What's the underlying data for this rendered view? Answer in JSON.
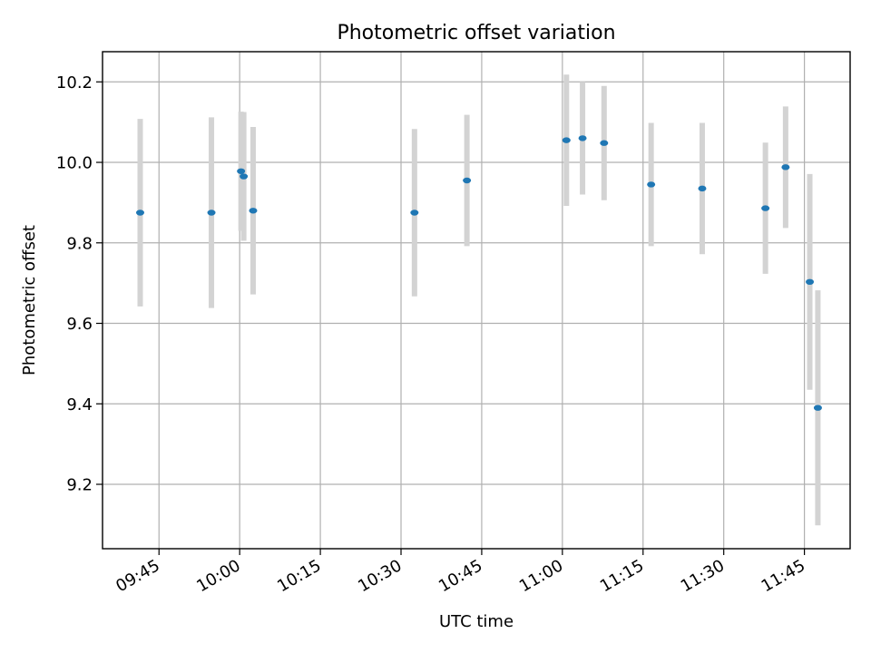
{
  "chart_data": {
    "type": "scatter",
    "title": "Photometric offset variation",
    "xlabel": "UTC time",
    "ylabel": "Photometric offset",
    "x_ticks": [
      "09:45",
      "10:00",
      "10:15",
      "10:30",
      "10:45",
      "11:00",
      "11:15",
      "11:30",
      "11:45"
    ],
    "y_ticks": [
      "9.2",
      "9.4",
      "9.6",
      "9.8",
      "10.0",
      "10.2"
    ],
    "xlim": [
      "09:34:30",
      "11:53:30"
    ],
    "ylim": [
      9.04,
      10.275
    ],
    "grid": true,
    "colors": {
      "point": "#1f77b4",
      "errorbar": "#d3d3d3"
    },
    "points": [
      {
        "x": "09:41:30",
        "y": 9.875,
        "err": 0.233
      },
      {
        "x": "09:54:45",
        "y": 9.875,
        "err": 0.237
      },
      {
        "x": "10:00:15",
        "y": 9.978,
        "err": 0.148
      },
      {
        "x": "10:00:45",
        "y": 9.965,
        "err": 0.16
      },
      {
        "x": "10:02:30",
        "y": 9.88,
        "err": 0.208
      },
      {
        "x": "10:32:30",
        "y": 9.875,
        "err": 0.208
      },
      {
        "x": "10:42:15",
        "y": 9.955,
        "err": 0.163
      },
      {
        "x": "11:00:45",
        "y": 10.055,
        "err": 0.163
      },
      {
        "x": "11:03:45",
        "y": 10.06,
        "err": 0.14
      },
      {
        "x": "11:07:45",
        "y": 10.048,
        "err": 0.142
      },
      {
        "x": "11:16:30",
        "y": 9.945,
        "err": 0.153
      },
      {
        "x": "11:26:00",
        "y": 9.935,
        "err": 0.163
      },
      {
        "x": "11:37:45",
        "y": 9.886,
        "err": 0.163
      },
      {
        "x": "11:41:30",
        "y": 9.988,
        "err": 0.151
      },
      {
        "x": "11:46:00",
        "y": 9.703,
        "err": 0.268
      },
      {
        "x": "11:47:30",
        "y": 9.39,
        "err": 0.292
      }
    ]
  }
}
